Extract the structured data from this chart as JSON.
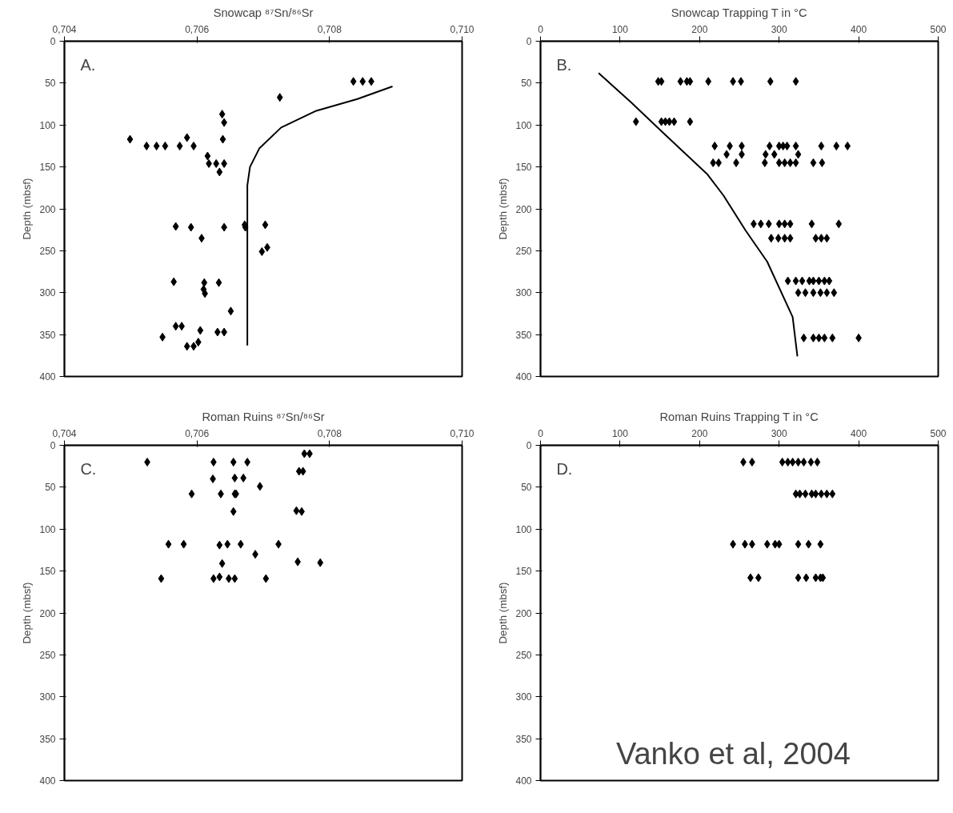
{
  "chart_data": [
    {
      "type": "scatter",
      "title": "Snowcap ⁸⁷Sn/⁸⁶Sr",
      "ylabel": "Depth (mbsf)",
      "grid": false,
      "xlim": [
        0.704,
        0.71
      ],
      "xticks": [
        {
          "value": 0.704,
          "label": "0,704"
        },
        {
          "value": 0.706,
          "label": "0,706"
        },
        {
          "value": 0.708,
          "label": "0,708"
        },
        {
          "value": 0.71,
          "label": "0,710"
        }
      ],
      "ylim": [
        400,
        0
      ],
      "yticks": [
        0,
        50,
        100,
        150,
        200,
        250,
        300,
        350,
        400
      ],
      "annotations": [
        "A."
      ],
      "series": [
        {
          "marker": "diamond",
          "color": "#000000",
          "x": [
            0.70836,
            0.7085,
            0.70863,
            0.70725,
            0.70638,
            0.70641,
            0.70639,
            0.70499,
            0.70585,
            0.70524,
            0.70539,
            0.70552,
            0.70574,
            0.70595,
            0.70616,
            0.70618,
            0.70629,
            0.70641,
            0.70634,
            0.70568,
            0.70591,
            0.70641,
            0.70672,
            0.70673,
            0.70703,
            0.70607,
            0.70698,
            0.70706,
            0.70565,
            0.70611,
            0.70633,
            0.7061,
            0.70612,
            0.70651,
            0.70568,
            0.70577,
            0.70605,
            0.70631,
            0.70641,
            0.70548,
            0.70585,
            0.70595,
            0.70602
          ],
          "values": [
            48,
            48,
            48,
            67,
            87,
            97,
            117,
            117,
            115,
            125,
            125,
            125,
            125,
            125,
            137,
            146,
            146,
            146,
            156,
            221,
            222,
            222,
            219,
            222,
            219,
            235,
            251,
            246,
            287,
            288,
            288,
            296,
            301,
            322,
            340,
            340,
            345,
            347,
            347,
            353,
            364,
            364,
            359
          ]
        },
        {
          "type": "line",
          "color": "#000000",
          "line_style": "solid",
          "x": [
            0.70895,
            0.70842,
            0.7078,
            0.70727,
            0.70694,
            0.7068,
            0.70676,
            0.70676,
            0.70676,
            0.70676
          ],
          "values": [
            54,
            69,
            83,
            103,
            128,
            150,
            172,
            226,
            293,
            363
          ]
        }
      ]
    },
    {
      "type": "scatter",
      "title": "Snowcap Trapping T in °C",
      "ylabel": "Depth (mbsf)",
      "grid": false,
      "xlim": [
        0,
        500
      ],
      "xticks": [
        0,
        100,
        200,
        300,
        400,
        500
      ],
      "ylim": [
        400,
        0
      ],
      "yticks": [
        0,
        50,
        100,
        150,
        200,
        250,
        300,
        350,
        400
      ],
      "annotations": [
        "B."
      ],
      "series": [
        {
          "marker": "diamond",
          "color": "#000000",
          "x": [
            148,
            152,
            176,
            184,
            188,
            211,
            242,
            252,
            289,
            321,
            120,
            152,
            157,
            162,
            168,
            188,
            219,
            238,
            253,
            288,
            300,
            305,
            310,
            321,
            353,
            372,
            386,
            234,
            253,
            283,
            294,
            324,
            217,
            224,
            246,
            282,
            300,
            307,
            314,
            321,
            343,
            354,
            268,
            277,
            287,
            300,
            307,
            314,
            341,
            375,
            290,
            299,
            307,
            314,
            346,
            353,
            360,
            311,
            321,
            329,
            338,
            343,
            350,
            357,
            363,
            324,
            333,
            343,
            352,
            360,
            369,
            331,
            343,
            350,
            357,
            367,
            400
          ],
          "values": [
            48,
            48,
            48,
            48,
            48,
            48,
            48,
            48,
            48,
            48,
            96,
            96,
            96,
            96,
            96,
            96,
            125,
            125,
            125,
            125,
            125,
            125,
            125,
            125,
            125,
            125,
            125,
            135,
            135,
            135,
            135,
            135,
            145,
            145,
            145,
            145,
            145,
            145,
            145,
            145,
            145,
            145,
            218,
            218,
            218,
            218,
            218,
            218,
            218,
            218,
            235,
            235,
            235,
            235,
            235,
            235,
            235,
            286,
            286,
            286,
            286,
            286,
            286,
            286,
            286,
            300,
            300,
            300,
            300,
            300,
            300,
            354,
            354,
            354,
            354,
            354,
            354
          ]
        },
        {
          "type": "line",
          "color": "#000000",
          "line_style": "solid",
          "x": [
            73,
            114,
            155,
            210,
            230,
            258,
            285,
            317,
            323
          ],
          "values": [
            38,
            73,
            110,
            159,
            184,
            226,
            263,
            329,
            376
          ]
        }
      ]
    },
    {
      "type": "scatter",
      "title": "Roman Ruins ⁸⁷Sn/⁸⁶Sr",
      "ylabel": "Depth (mbsf)",
      "marker": "diamond",
      "grid": false,
      "xlim": [
        0.704,
        0.71
      ],
      "xticks": [
        {
          "value": 0.704,
          "label": "0,704"
        },
        {
          "value": 0.706,
          "label": "0,706"
        },
        {
          "value": 0.708,
          "label": "0,708"
        },
        {
          "value": 0.71,
          "label": "0,710"
        }
      ],
      "ylim": [
        400,
        0
      ],
      "yticks": [
        0,
        50,
        100,
        150,
        200,
        250,
        300,
        350,
        400
      ],
      "annotations": [
        "C."
      ],
      "series": [
        {
          "color": "#000000",
          "x": [
            0.70762,
            0.7077,
            0.70525,
            0.70625,
            0.70655,
            0.70676,
            0.70754,
            0.7076,
            0.70624,
            0.70657,
            0.7067,
            0.70695,
            0.70592,
            0.70636,
            0.70657,
            0.70659,
            0.70655,
            0.7075,
            0.70758,
            0.70557,
            0.7058,
            0.70634,
            0.70646,
            0.70666,
            0.70723,
            0.70688,
            0.70638,
            0.70752,
            0.70786,
            0.70546,
            0.70625,
            0.70634,
            0.70648,
            0.70657,
            0.70704
          ],
          "values": [
            10,
            10,
            20,
            20,
            20,
            20,
            31,
            31,
            40,
            39,
            39,
            49,
            58,
            58,
            58,
            58,
            79,
            78,
            79,
            118,
            118,
            119,
            118,
            118,
            118,
            130,
            141,
            139,
            140,
            159,
            159,
            157,
            159,
            159,
            159
          ]
        }
      ]
    },
    {
      "type": "scatter",
      "title": "Roman Ruins Trapping T in °C",
      "ylabel": "Depth (mbsf)",
      "marker": "diamond",
      "grid": false,
      "xlim": [
        0,
        500
      ],
      "xticks": [
        0,
        100,
        200,
        300,
        400,
        500
      ],
      "ylim": [
        400,
        0
      ],
      "yticks": [
        0,
        50,
        100,
        150,
        200,
        250,
        300,
        350,
        400
      ],
      "annotations": [
        "D.",
        "Vanko et al, 2004"
      ],
      "series": [
        {
          "color": "#000000",
          "x": [
            255,
            266,
            304,
            311,
            317,
            324,
            331,
            340,
            348,
            321,
            326,
            333,
            341,
            346,
            353,
            360,
            367,
            242,
            257,
            266,
            285,
            295,
            300,
            324,
            337,
            352,
            264,
            274,
            324,
            334,
            346,
            352,
            355
          ],
          "values": [
            20,
            20,
            20,
            20,
            20,
            20,
            20,
            20,
            20,
            58,
            58,
            58,
            58,
            58,
            58,
            58,
            58,
            118,
            118,
            118,
            118,
            118,
            118,
            118,
            118,
            118,
            158,
            158,
            158,
            158,
            158,
            158,
            158
          ]
        }
      ]
    }
  ]
}
